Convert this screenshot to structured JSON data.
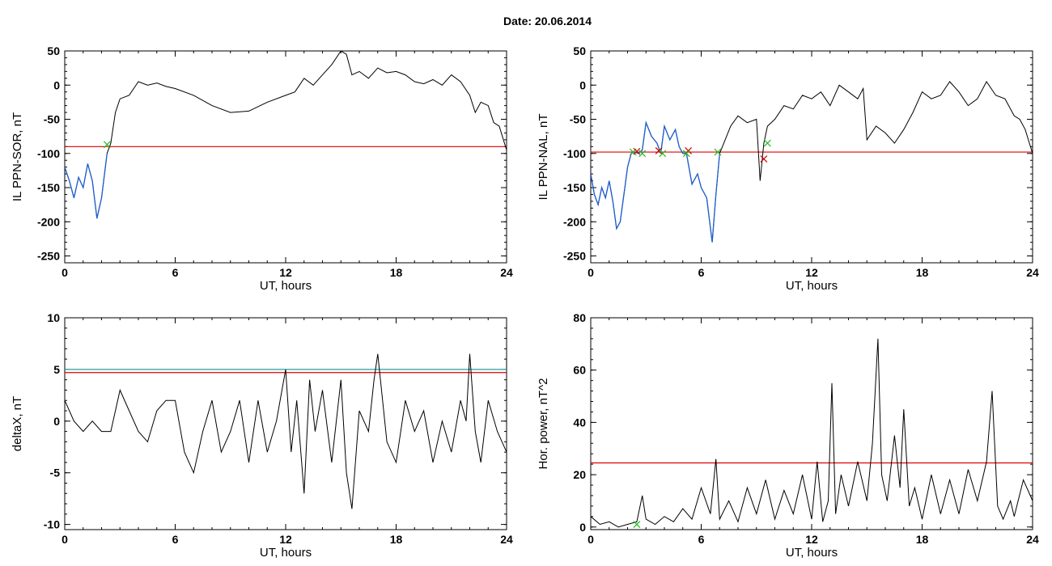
{
  "title": "Date:  20.06.2014",
  "colors": {
    "trace": "#000000",
    "threshold": "#e00000",
    "threshold_alt": "#2aa0a0",
    "highlight": "#1f5fd0",
    "marker_green": "#22bb22",
    "marker_red": "#cc0000"
  },
  "chart_data": [
    {
      "type": "line",
      "xlabel": "UT, hours",
      "ylabel": "IL PPN-SOR, nT",
      "xlim": [
        0,
        24
      ],
      "ylim": [
        -260,
        50
      ],
      "xticks": [
        0,
        6,
        12,
        18,
        24
      ],
      "yticks": [
        -250,
        -200,
        -150,
        -100,
        -50,
        0,
        50
      ],
      "x": [
        0,
        0.25,
        0.5,
        0.75,
        1.0,
        1.25,
        1.5,
        1.75,
        2.0,
        2.3,
        2.5,
        2.75,
        3.0,
        3.5,
        4.0,
        4.5,
        5.0,
        5.5,
        6.0,
        7.0,
        8.0,
        9.0,
        10.0,
        11.0,
        12.0,
        12.5,
        13.0,
        13.5,
        14.0,
        14.5,
        15.0,
        15.3,
        15.6,
        16.0,
        16.5,
        17.0,
        17.5,
        18.0,
        18.5,
        19.0,
        19.5,
        20.0,
        20.5,
        21.0,
        21.5,
        22.0,
        22.3,
        22.6,
        23.0,
        23.3,
        23.6,
        24.0
      ],
      "y": [
        -120,
        -140,
        -165,
        -135,
        -150,
        -115,
        -140,
        -195,
        -165,
        -100,
        -85,
        -40,
        -20,
        -15,
        5,
        0,
        3,
        -2,
        -5,
        -15,
        -30,
        -40,
        -38,
        -25,
        -15,
        -10,
        10,
        0,
        15,
        30,
        50,
        45,
        15,
        20,
        10,
        25,
        18,
        20,
        15,
        5,
        2,
        8,
        0,
        15,
        5,
        -15,
        -40,
        -25,
        -30,
        -55,
        -60,
        -95
      ],
      "highlight_x_max": 2.3,
      "threshold": -90,
      "markers": [
        {
          "x": 2.3,
          "y": -87,
          "color": "green"
        }
      ]
    },
    {
      "type": "line",
      "xlabel": "UT, hours",
      "ylabel": "IL PPN-NAL, nT",
      "xlim": [
        0,
        24
      ],
      "ylim": [
        -260,
        50
      ],
      "xticks": [
        0,
        6,
        12,
        18,
        24
      ],
      "yticks": [
        -250,
        -200,
        -150,
        -100,
        -50,
        0,
        50
      ],
      "x": [
        0,
        0.2,
        0.4,
        0.6,
        0.8,
        1.0,
        1.2,
        1.4,
        1.6,
        1.8,
        2.0,
        2.2,
        2.4,
        2.6,
        2.8,
        3.0,
        3.3,
        3.6,
        3.8,
        4.0,
        4.3,
        4.6,
        4.8,
        5.0,
        5.2,
        5.5,
        5.8,
        6.0,
        6.3,
        6.6,
        6.8,
        7.0,
        7.3,
        7.6,
        8.0,
        8.5,
        9.0,
        9.2,
        9.4,
        9.6,
        10.0,
        10.5,
        11.0,
        11.5,
        12.0,
        12.5,
        13.0,
        13.5,
        14.0,
        14.5,
        14.8,
        15.0,
        15.5,
        16.0,
        16.5,
        17.0,
        17.5,
        18.0,
        18.5,
        19.0,
        19.5,
        20.0,
        20.5,
        21.0,
        21.5,
        22.0,
        22.5,
        23.0,
        23.3,
        23.6,
        24.0
      ],
      "y": [
        -130,
        -160,
        -175,
        -150,
        -165,
        -140,
        -170,
        -210,
        -200,
        -160,
        -120,
        -100,
        -98,
        -100,
        -95,
        -55,
        -75,
        -85,
        -100,
        -60,
        -80,
        -65,
        -90,
        -100,
        -100,
        -145,
        -130,
        -150,
        -165,
        -230,
        -160,
        -100,
        -80,
        -60,
        -45,
        -55,
        -50,
        -140,
        -85,
        -60,
        -50,
        -30,
        -35,
        -15,
        -20,
        -10,
        -30,
        0,
        -10,
        -20,
        -5,
        -80,
        -60,
        -70,
        -85,
        -65,
        -40,
        -10,
        -20,
        -15,
        5,
        -10,
        -30,
        -20,
        5,
        -15,
        -20,
        -45,
        -50,
        -65,
        -100
      ],
      "highlight_x_max": 7.0,
      "highlight_x_ranges": [
        [
          9.25,
          9.4
        ]
      ],
      "threshold": -98,
      "markers": [
        {
          "x": 2.3,
          "y": -98,
          "color": "green"
        },
        {
          "x": 2.5,
          "y": -97,
          "color": "red"
        },
        {
          "x": 2.8,
          "y": -100,
          "color": "green"
        },
        {
          "x": 3.7,
          "y": -96,
          "color": "red"
        },
        {
          "x": 3.9,
          "y": -100,
          "color": "green"
        },
        {
          "x": 5.3,
          "y": -96,
          "color": "red"
        },
        {
          "x": 5.2,
          "y": -100,
          "color": "green"
        },
        {
          "x": 6.9,
          "y": -98,
          "color": "green"
        },
        {
          "x": 9.4,
          "y": -108,
          "color": "red"
        },
        {
          "x": 9.6,
          "y": -85,
          "color": "green"
        }
      ]
    },
    {
      "type": "line",
      "xlabel": "UT, hours",
      "ylabel": "deltaX, nT",
      "xlim": [
        0,
        24
      ],
      "ylim": [
        -10.5,
        10
      ],
      "xticks": [
        0,
        6,
        12,
        18,
        24
      ],
      "yticks": [
        -10,
        -5,
        0,
        5,
        10
      ],
      "x": [
        0,
        0.5,
        1.0,
        1.5,
        2.0,
        2.5,
        3.0,
        3.5,
        4.0,
        4.5,
        5.0,
        5.5,
        6.0,
        6.5,
        7.0,
        7.5,
        8.0,
        8.5,
        9.0,
        9.5,
        10.0,
        10.5,
        11.0,
        11.5,
        12.0,
        12.3,
        12.6,
        13.0,
        13.3,
        13.6,
        14.0,
        14.5,
        15.0,
        15.3,
        15.6,
        16.0,
        16.5,
        16.8,
        17.0,
        17.5,
        18.0,
        18.5,
        19.0,
        19.5,
        20.0,
        20.5,
        21.0,
        21.5,
        21.8,
        22.0,
        22.3,
        22.6,
        23.0,
        23.5,
        24.0
      ],
      "y": [
        2,
        0,
        -1,
        0,
        -1,
        -1,
        3,
        1,
        -1,
        -2,
        1,
        2,
        2,
        -3,
        -5,
        -1,
        2,
        -3,
        -1,
        2,
        -4,
        2,
        -3,
        0,
        5,
        -3,
        2,
        -7,
        4,
        -1,
        3,
        -4,
        4,
        -5,
        -8.5,
        1,
        -1,
        4,
        6.5,
        -2,
        -4,
        2,
        -1,
        1,
        -4,
        0,
        -3,
        2,
        0,
        6.5,
        -1,
        -4,
        2,
        -1,
        -3
      ],
      "threshold": 4.7,
      "threshold2": 5.0
    },
    {
      "type": "line",
      "xlabel": "UT, hours",
      "ylabel": "Hor. power, nT^2",
      "xlim": [
        0,
        24
      ],
      "ylim": [
        -1,
        80
      ],
      "xticks": [
        0,
        6,
        12,
        18,
        24
      ],
      "yticks": [
        0,
        20,
        40,
        60,
        80
      ],
      "x": [
        0,
        0.5,
        1.0,
        1.5,
        2.0,
        2.5,
        2.8,
        3.0,
        3.5,
        4.0,
        4.5,
        5.0,
        5.5,
        6.0,
        6.5,
        6.8,
        7.0,
        7.5,
        8.0,
        8.5,
        9.0,
        9.5,
        10.0,
        10.5,
        11.0,
        11.5,
        12.0,
        12.3,
        12.6,
        12.9,
        13.1,
        13.3,
        13.6,
        14.0,
        14.5,
        15.0,
        15.3,
        15.6,
        15.8,
        16.1,
        16.5,
        16.8,
        17.0,
        17.3,
        17.6,
        18.0,
        18.5,
        19.0,
        19.5,
        20.0,
        20.5,
        21.0,
        21.5,
        21.8,
        22.1,
        22.4,
        22.8,
        23.0,
        23.5,
        24.0
      ],
      "y": [
        4,
        1,
        2,
        0,
        1,
        2,
        12,
        3,
        1,
        4,
        2,
        7,
        3,
        15,
        5,
        26,
        3,
        10,
        2,
        15,
        5,
        18,
        3,
        14,
        5,
        20,
        3,
        25,
        2,
        10,
        55,
        5,
        20,
        8,
        25,
        10,
        32,
        72,
        20,
        10,
        35,
        15,
        45,
        8,
        15,
        3,
        20,
        5,
        18,
        5,
        22,
        10,
        25,
        52,
        8,
        3,
        10,
        4,
        18,
        10
      ],
      "threshold": 24.5,
      "markers": [
        {
          "x": 2.5,
          "y": 1,
          "color": "green"
        }
      ]
    }
  ]
}
